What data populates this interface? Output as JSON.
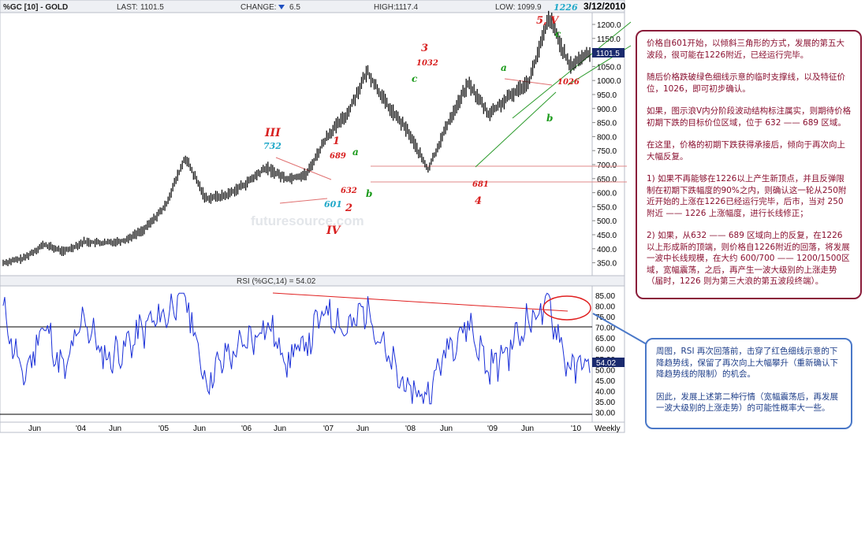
{
  "header": {
    "symbol": "%GC [10] - GOLD",
    "last_label": "LAST:",
    "last_value": "1101.5",
    "change_label": "CHANGE:",
    "change_value": "6.5",
    "high_label": "HIGH:",
    "high_value": "1117.4",
    "low_label": "LOW:",
    "low_value": "1099.9",
    "date": "3/12/2010"
  },
  "price_axis": {
    "ticks": [
      "1200.0",
      "1150.0",
      "1100.0",
      "1050.0",
      "1000.0",
      "950.0",
      "900.0",
      "850.0",
      "800.0",
      "750.0",
      "700.0",
      "650.0",
      "600.0",
      "550.0",
      "500.0",
      "450.0",
      "400.0",
      "350.0"
    ],
    "last_badge": "1101.5"
  },
  "rsi": {
    "title": "RSI (%GC,14) = 54.02",
    "ticks": [
      "85.00",
      "80.00",
      "75.00",
      "70.00",
      "65.00",
      "60.00",
      "55.00",
      "50.00",
      "45.00",
      "40.00",
      "35.00",
      "30.00"
    ],
    "last_badge": "54.02"
  },
  "x_axis": {
    "labels": [
      "Jun",
      "'04",
      "Jun",
      "'05",
      "Jun",
      "'06",
      "Jun",
      "'07",
      "Jun",
      "'08",
      "Jun",
      "'09",
      "Jun",
      "'10",
      "Weekly"
    ]
  },
  "watermark": "futuresource.com",
  "wave_labels": {
    "iii": "III",
    "v_732": "732",
    "iv": "IV",
    "v_601": "601",
    "w1": "1",
    "v_689": "689",
    "w_a1": "a",
    "v_632": "632",
    "w2": "2",
    "w_b1": "b",
    "w3": "3",
    "v_1032": "1032",
    "w_c1": "c",
    "v_681": "681",
    "w4": "4",
    "w_a2": "a",
    "v_1026": "1026",
    "w_b2": "b",
    "w5v": "5, V",
    "v_1226": "1226",
    "w_c2": "c"
  },
  "note_main": {
    "p1": "价格自601开始，以倾斜三角形的方式，发展的第五大波段，很可能在1226附近，已经运行完毕。",
    "p2": "随后价格跌破绿色细线示意的临时支撑线，以及特征价位，1026，即可初步确认。",
    "p3": "如果，图示浪V内分阶段波动结构标注属实，则期待价格初期下跌的目标价位区域，位于 632 —— 689 区域。",
    "p4": "在这里，价格的初期下跌获得承接后，倾向于再次向上大幅反复。",
    "p5": "1) 如果不再能够在1226以上产生新顶点，并且反弹限制在初期下跌幅度的90%之内，则确认这一轮从250附近开始的上涨在1226已经运行完毕，后市，当对 250 附近 —— 1226 上涨幅度，进行长线修正；",
    "p6": "2) 如果，从632 —— 689 区域向上的反复，在1226 以上形成新的顶端，则价格自1226附近的回落，将发展一波中长线规模，在大约 600/700 —— 1200/1500区域，宽幅震荡，之后，再产生一波大级别的上涨走势（届时，1226 则为第三大浪的第五波段终端）。"
  },
  "note_rsi": {
    "p1": "周图，RSI 再次回落前，击穿了红色细线示意的下降趋势线，保留了再次向上大幅攀升（重新确认下降趋势线的限制）的机会。",
    "p2": "因此，发展上述第二种行情（宽幅震荡后，再发展一波大级别的上涨走势）的可能性概率大一些。"
  },
  "colors": {
    "price_bars": "#000000",
    "rsi_line": "#1a2fd8",
    "trendline_red": "#e04040",
    "support_green": "#2a9a2a",
    "wave_red": "#d82020",
    "wave_green": "#1a9a1a",
    "wave_cyan": "#20a8c8",
    "note_border": "#8a1c3a",
    "note_rsi_border": "#4a78c8"
  },
  "chart_data": [
    {
      "type": "line",
      "name": "price",
      "x": [
        "2003-06",
        "2003-09",
        "2004-01",
        "2004-06",
        "2004-10",
        "2005-01",
        "2005-06",
        "2005-10",
        "2006-01",
        "2006-05",
        "2006-06",
        "2006-10",
        "2007-01",
        "2007-03",
        "2007-06",
        "2007-08",
        "2007-11",
        "2008-01",
        "2008-03",
        "2008-06",
        "2008-08",
        "2008-10",
        "2008-12",
        "2009-02",
        "2009-04",
        "2009-06",
        "2009-09",
        "2009-12",
        "2010-02",
        "2010-03"
      ],
      "values": [
        350,
        365,
        415,
        390,
        425,
        420,
        430,
        470,
        550,
        725,
        580,
        590,
        632,
        689,
        650,
        665,
        800,
        880,
        1032,
        910,
        820,
        681,
        850,
        990,
        880,
        940,
        1000,
        1226,
        1050,
        1101.5
      ],
      "ylim": [
        300,
        1250
      ]
    },
    {
      "type": "line",
      "name": "rsi",
      "x": [
        "2003-06",
        "2003-09",
        "2004-01",
        "2004-06",
        "2004-10",
        "2005-01",
        "2005-06",
        "2005-10",
        "2006-01",
        "2006-05",
        "2006-06",
        "2006-10",
        "2007-01",
        "2007-03",
        "2007-06",
        "2007-08",
        "2007-11",
        "2008-01",
        "2008-03",
        "2008-06",
        "2008-08",
        "2008-10",
        "2008-12",
        "2009-02",
        "2009-04",
        "2009-06",
        "2009-09",
        "2009-12",
        "2010-02",
        "2010-03"
      ],
      "values": [
        78,
        45,
        72,
        48,
        75,
        55,
        60,
        70,
        76,
        86,
        44,
        56,
        62,
        72,
        55,
        62,
        79,
        68,
        80,
        55,
        40,
        38,
        62,
        72,
        50,
        60,
        74,
        80,
        50,
        54.02
      ],
      "ylim": [
        28,
        88
      ]
    }
  ]
}
